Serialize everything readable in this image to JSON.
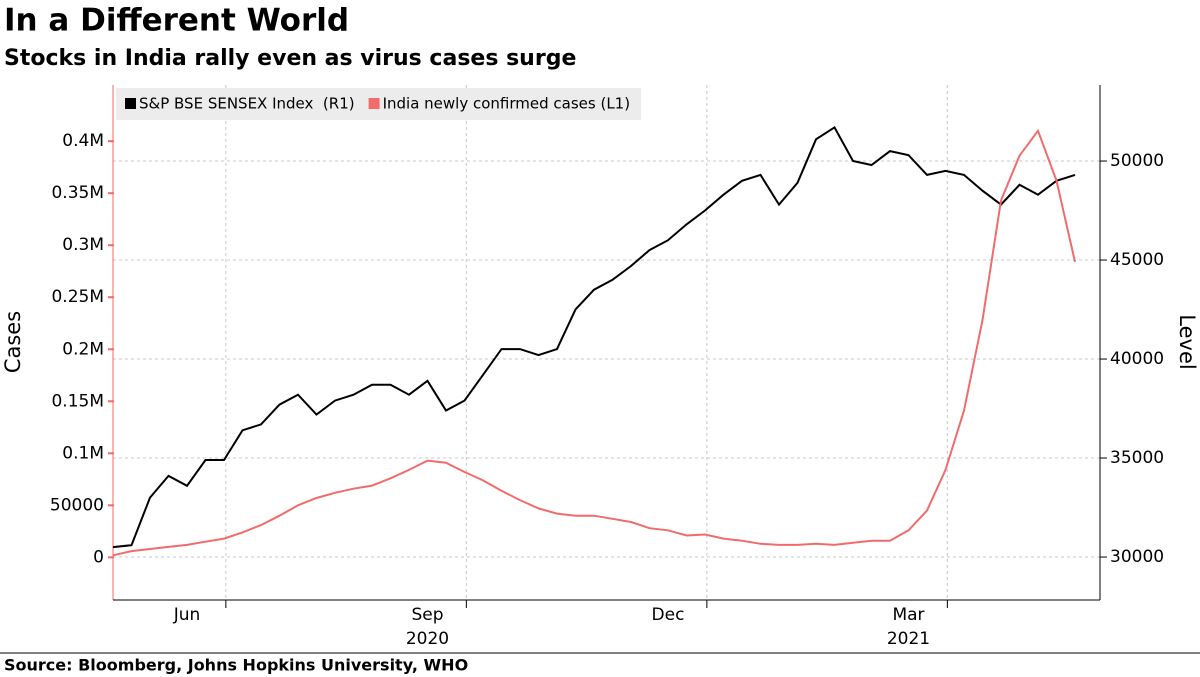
{
  "chart_data": {
    "type": "line",
    "title": "In a Different World",
    "subtitle": "Stocks in India rally even as virus cases surge",
    "source": "Source: Bloomberg, Johns Hopkins University, WHO",
    "y_label": "Cases",
    "y2_label": "Level",
    "categories": [
      null,
      null,
      null,
      null,
      "Jun",
      null,
      null,
      null,
      null,
      null,
      null,
      null,
      null,
      null,
      null,
      null,
      null,
      "Sep",
      null,
      null,
      null,
      null,
      null,
      null,
      null,
      null,
      null,
      null,
      null,
      null,
      "Dec",
      null,
      null,
      null,
      null,
      null,
      null,
      null,
      null,
      null,
      null,
      null,
      null,
      "Mar",
      null,
      null,
      null,
      null,
      null,
      null,
      null,
      null,
      null
    ],
    "categories_year": [
      null,
      null,
      null,
      null,
      null,
      null,
      null,
      null,
      null,
      null,
      null,
      null,
      null,
      null,
      null,
      null,
      null,
      "2020",
      null,
      null,
      null,
      null,
      null,
      null,
      null,
      null,
      null,
      null,
      null,
      null,
      null,
      null,
      null,
      null,
      null,
      null,
      null,
      null,
      null,
      null,
      null,
      null,
      null,
      "2021",
      null,
      null,
      null,
      null,
      null,
      null,
      null,
      null,
      null
    ],
    "series": [
      {
        "name": "S&P BSE SENSEX Index  (R1)",
        "color": "#000000",
        "axis": "y2",
        "values": [
          30500,
          30600,
          33000,
          34100,
          33600,
          34900,
          34900,
          36400,
          36700,
          37700,
          38200,
          37200,
          37900,
          38200,
          38700,
          38700,
          38200,
          38900,
          37400,
          37900,
          39200,
          40500,
          40500,
          40200,
          40500,
          42500,
          43500,
          44000,
          44700,
          45500,
          46000,
          46800,
          47500,
          48300,
          49000,
          49300,
          47800,
          48900,
          51100,
          51700,
          50000,
          49800,
          50500,
          50300,
          49300,
          49500,
          49300,
          48500,
          47800,
          48800,
          48300,
          49000,
          49300
        ]
      },
      {
        "name": "India newly confirmed cases (L1)",
        "color": "#f26b6b",
        "values": [
          2000,
          6000,
          8000,
          10000,
          12000,
          15000,
          18000,
          24000,
          31000,
          40000,
          50000,
          57000,
          62000,
          66000,
          69000,
          76000,
          84000,
          93000,
          91000,
          82000,
          74000,
          64000,
          55000,
          47000,
          42000,
          40000,
          40000,
          37000,
          34000,
          28000,
          26000,
          21000,
          22000,
          18000,
          16000,
          13000,
          12000,
          12000,
          13000,
          12000,
          14000,
          16000,
          16000,
          26000,
          45000,
          84000,
          141000,
          228000,
          343000,
          386000,
          410000,
          362000,
          284000
        ]
      }
    ],
    "ylim": [
      -41000,
      454000
    ],
    "yticks": [
      0,
      50000,
      {
        "value": 100000,
        "label": "0.1M"
      },
      {
        "value": 150000,
        "label": "0.15M"
      },
      {
        "value": 200000,
        "label": "0.2M"
      },
      {
        "value": 250000,
        "label": "0.25M"
      },
      {
        "value": 300000,
        "label": "0.3M"
      },
      {
        "value": 350000,
        "label": "0.35M"
      },
      {
        "value": 400000,
        "label": "0.4M"
      }
    ],
    "y2lim": [
      27830,
      53840
    ],
    "y2ticks": [
      30000,
      35000,
      40000,
      45000,
      50000
    ],
    "grid": true,
    "legend": "top-left"
  }
}
